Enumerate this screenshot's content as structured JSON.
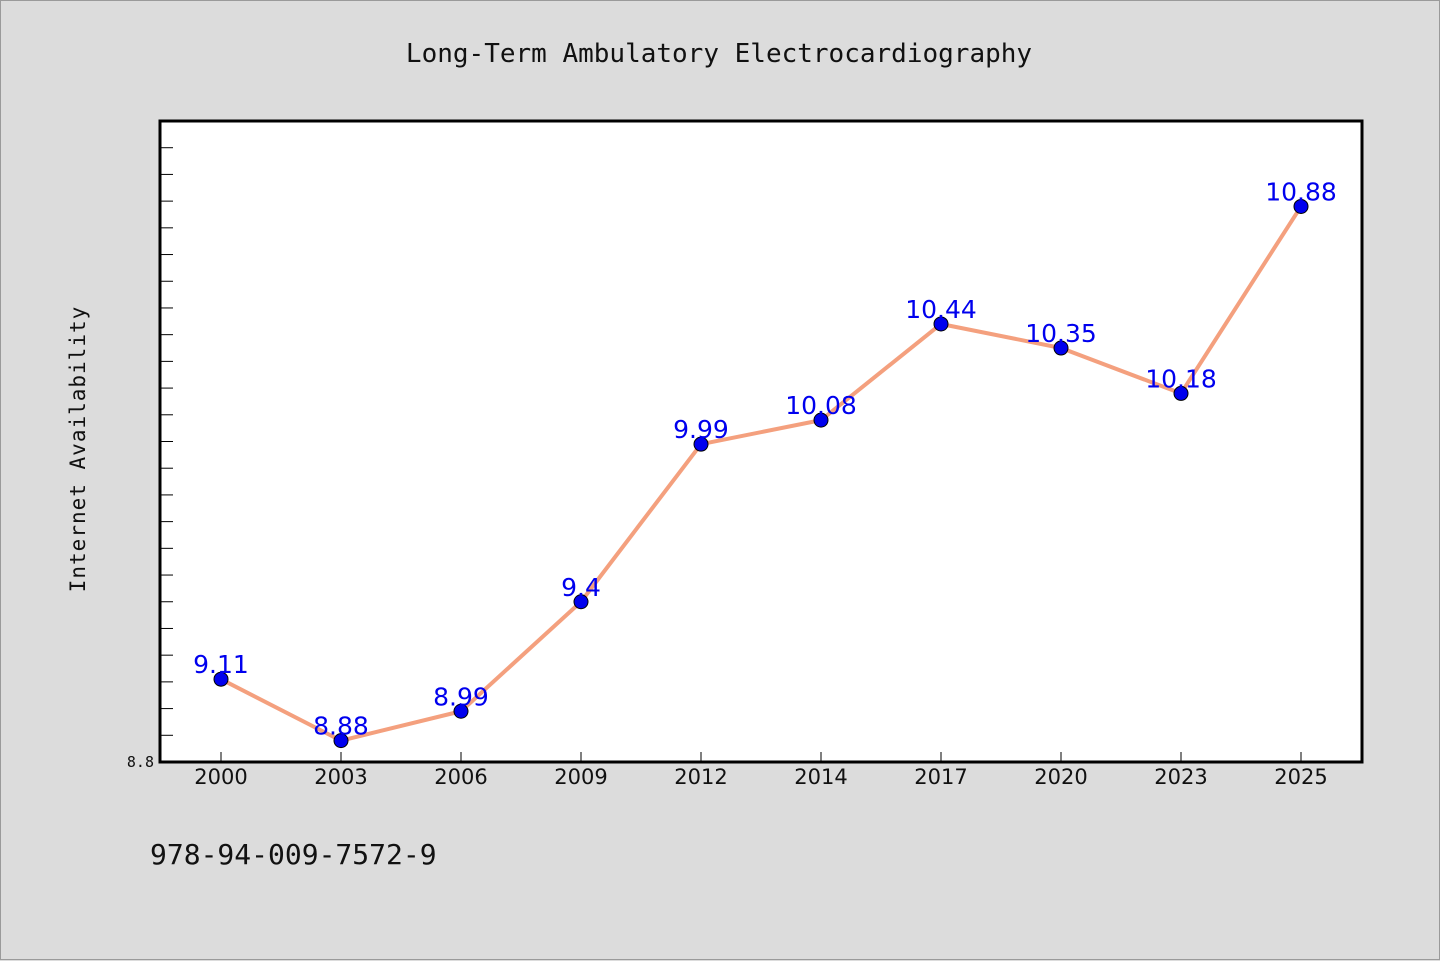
{
  "chart_data": {
    "type": "line",
    "title": "Long-Term Ambulatory Electrocardiography",
    "xlabel": "",
    "ylabel": "Internet Availability",
    "categories": [
      "2000",
      "2003",
      "2006",
      "2009",
      "2012",
      "2014",
      "2017",
      "2020",
      "2023",
      "2025"
    ],
    "series": [
      {
        "values": [
          9.11,
          8.88,
          8.99,
          9.4,
          9.99,
          10.08,
          10.44,
          10.35,
          10.18,
          10.88
        ],
        "data_labels": [
          "9.11",
          "8.88",
          "8.99",
          "9.4",
          "9.99",
          "10.08",
          "10.44",
          "10.35",
          "10.18",
          "10.88"
        ]
      }
    ],
    "ylim": [
      8.8,
      11.2
    ],
    "y_tick_labels": [
      {
        "value": 8.8,
        "label": "8.8"
      }
    ],
    "y_minor_tick_step": 0.1,
    "grid": false,
    "colors": {
      "line": "#f4a07e",
      "marker": "#0000ee",
      "label": "#0000ee",
      "background": "#dcdcdc",
      "plot_area": "#ffffff"
    }
  },
  "footer": {
    "isbn": "978-94-009-7572-9"
  }
}
